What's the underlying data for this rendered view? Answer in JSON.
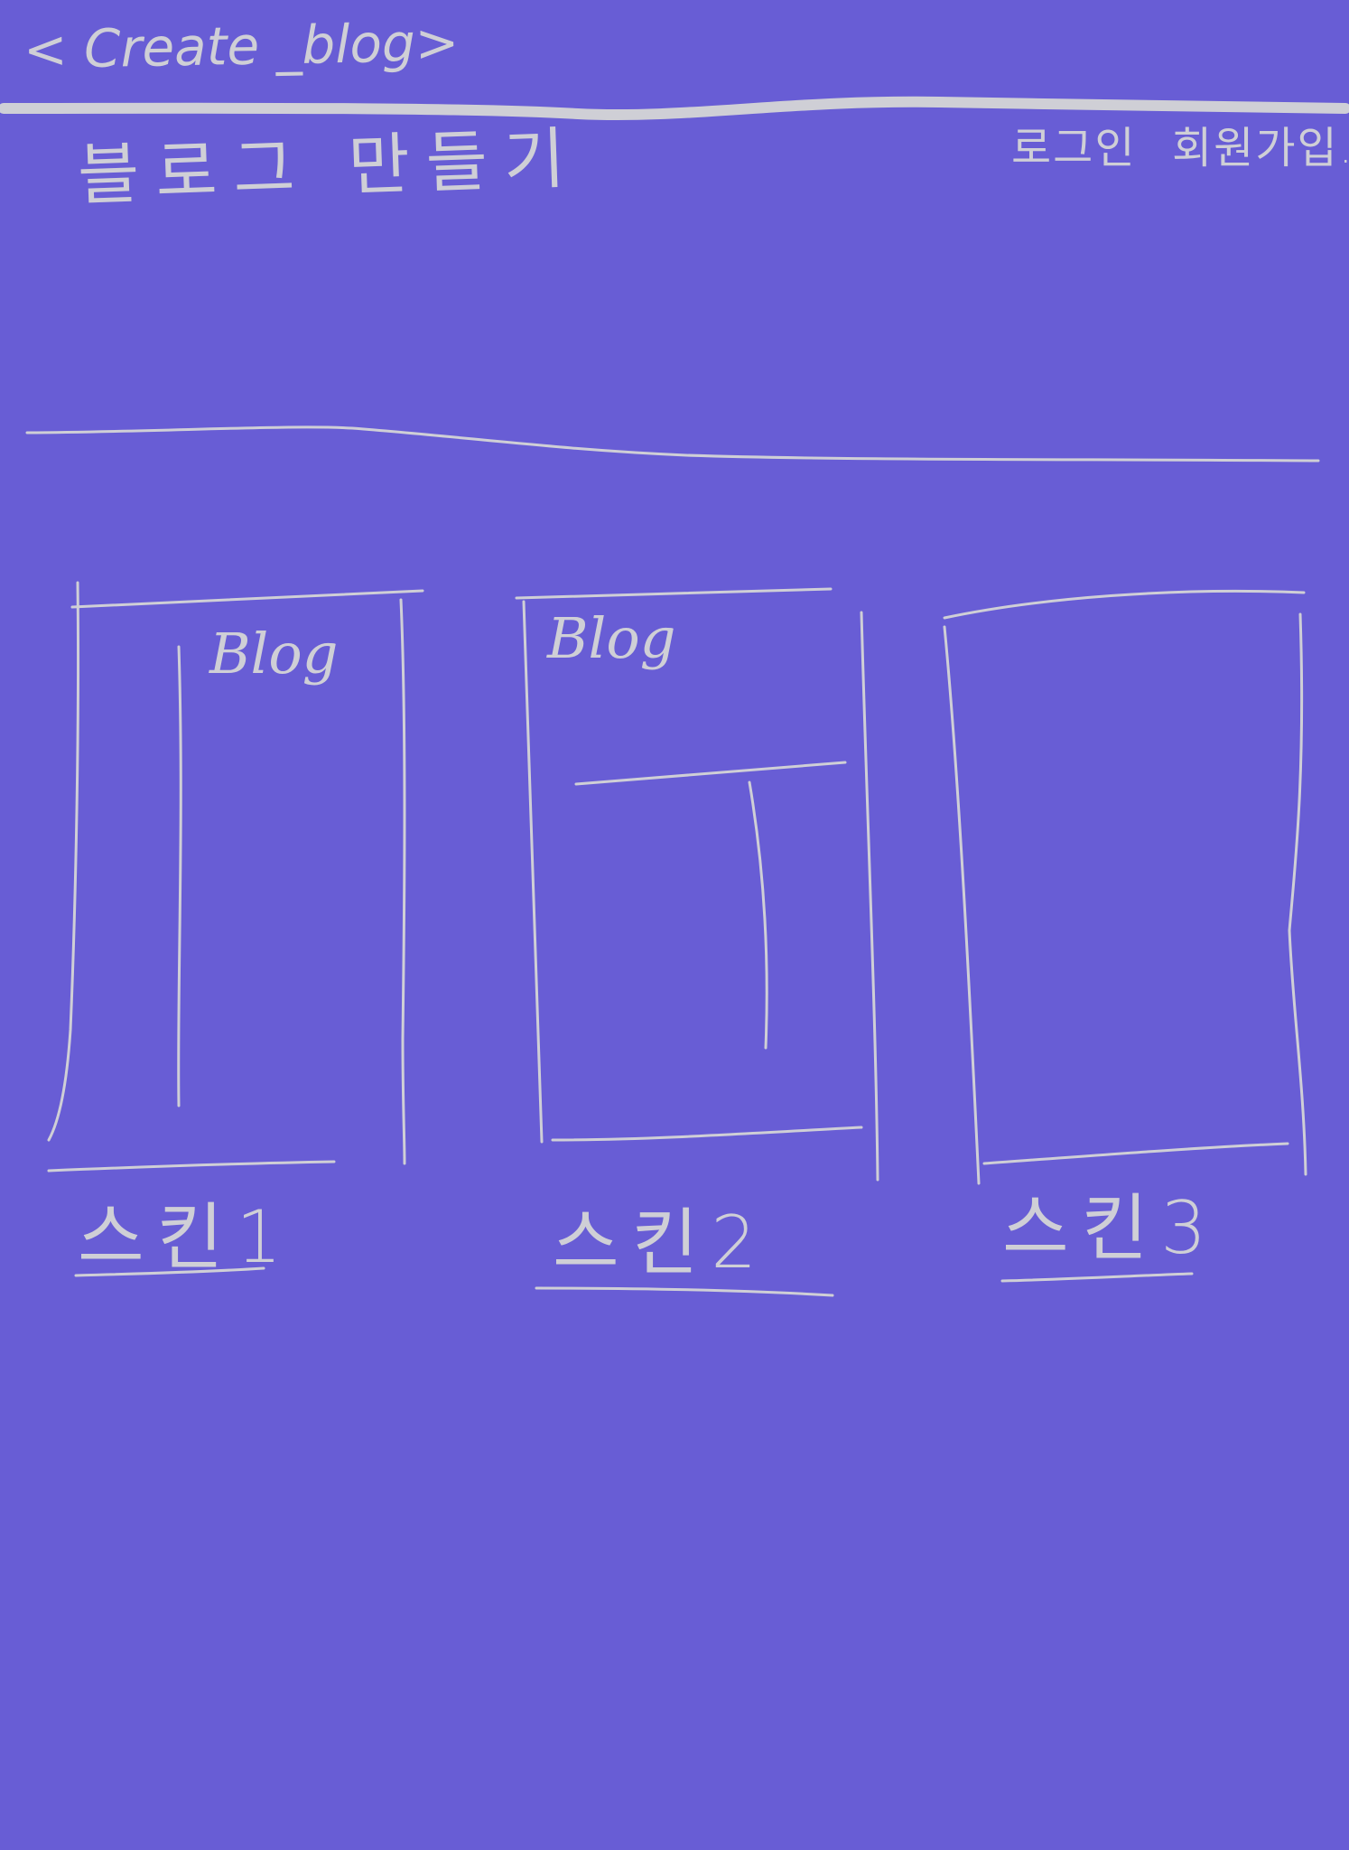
{
  "header": {
    "app_title": "< Create _blog>",
    "login_label": "로그인",
    "signup_label": "회원가입."
  },
  "main": {
    "title": "블로그 만들기"
  },
  "skins": [
    {
      "preview_label": "Blog",
      "label": "스킨1"
    },
    {
      "preview_label": "Blog",
      "label": "스킨2"
    },
    {
      "label": "스킨3"
    }
  ]
}
